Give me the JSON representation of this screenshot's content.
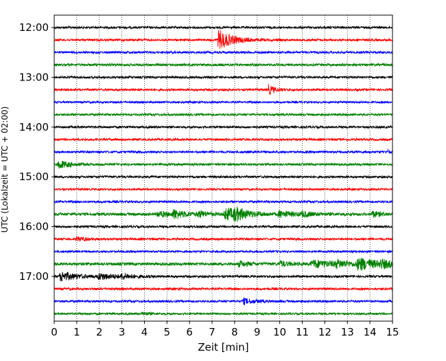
{
  "chart_data": {
    "type": "line",
    "subtype": "helicorder seismogram",
    "title": "",
    "xlabel": "Zeit  [min]",
    "ylabel": "UTC (Lokalzeit = UTC + 02:00)",
    "xlim": [
      0,
      15
    ],
    "x_ticks": [
      0,
      1,
      2,
      3,
      4,
      5,
      6,
      7,
      8,
      9,
      10,
      11,
      12,
      13,
      14,
      15
    ],
    "x_tick_labels": [
      "0",
      "1",
      "2",
      "3",
      "4",
      "5",
      "6",
      "7",
      "8",
      "9",
      "10",
      "11",
      "12",
      "13",
      "14",
      "15"
    ],
    "y_tick_labels": [
      "12:00",
      "13:00",
      "14:00",
      "15:00",
      "16:00",
      "17:00"
    ],
    "y_tick_rows": [
      0,
      4,
      8,
      12,
      16,
      20
    ],
    "vertical_grid": "dotted at each minute",
    "trace_minutes": 15,
    "row_colors": [
      "#000000",
      "#ff0000",
      "#0000ff",
      "#008000"
    ],
    "rows": [
      {
        "start": "12:00",
        "color": "black",
        "noise": 1.0,
        "events": []
      },
      {
        "start": "12:15",
        "color": "red",
        "noise": 1.0,
        "events": [
          {
            "t": 7.3,
            "amp": 14,
            "dur": 0.6
          }
        ]
      },
      {
        "start": "12:30",
        "color": "blue",
        "noise": 1.0,
        "events": []
      },
      {
        "start": "12:45",
        "color": "green",
        "noise": 1.1,
        "events": []
      },
      {
        "start": "13:00",
        "color": "black",
        "noise": 1.0,
        "events": []
      },
      {
        "start": "13:15",
        "color": "red",
        "noise": 1.0,
        "events": [
          {
            "t": 9.5,
            "amp": 7,
            "dur": 0.25
          }
        ]
      },
      {
        "start": "13:30",
        "color": "blue",
        "noise": 0.9,
        "events": []
      },
      {
        "start": "13:45",
        "color": "green",
        "noise": 1.0,
        "events": []
      },
      {
        "start": "14:00",
        "color": "black",
        "noise": 1.0,
        "events": []
      },
      {
        "start": "14:15",
        "color": "red",
        "noise": 1.0,
        "events": []
      },
      {
        "start": "14:30",
        "color": "blue",
        "noise": 1.0,
        "events": [
          {
            "t": 14.8,
            "amp": 3,
            "dur": 0.1
          }
        ]
      },
      {
        "start": "14:45",
        "color": "green",
        "noise": 1.0,
        "events": [
          {
            "t": 0.2,
            "amp": 6,
            "dur": 0.5
          }
        ]
      },
      {
        "start": "15:00",
        "color": "black",
        "noise": 1.0,
        "events": []
      },
      {
        "start": "15:15",
        "color": "red",
        "noise": 0.9,
        "events": []
      },
      {
        "start": "15:30",
        "color": "blue",
        "noise": 1.0,
        "events": []
      },
      {
        "start": "15:45",
        "color": "green",
        "noise": 1.3,
        "events": [
          {
            "t": 4.6,
            "amp": 4,
            "dur": 0.5
          },
          {
            "t": 5.3,
            "amp": 6,
            "dur": 0.5
          },
          {
            "t": 6.4,
            "amp": 4,
            "dur": 0.4
          },
          {
            "t": 7.6,
            "amp": 9,
            "dur": 0.7
          },
          {
            "t": 8.0,
            "amp": 6,
            "dur": 0.5
          },
          {
            "t": 10.0,
            "amp": 4,
            "dur": 0.7
          },
          {
            "t": 11.0,
            "amp": 3,
            "dur": 0.4
          },
          {
            "t": 14.1,
            "amp": 4,
            "dur": 0.4
          }
        ]
      },
      {
        "start": "16:00",
        "color": "black",
        "noise": 1.0,
        "events": []
      },
      {
        "start": "16:15",
        "color": "red",
        "noise": 1.0,
        "events": [
          {
            "t": 1.0,
            "amp": 3,
            "dur": 0.4
          }
        ]
      },
      {
        "start": "16:30",
        "color": "blue",
        "noise": 0.9,
        "events": []
      },
      {
        "start": "16:45",
        "color": "green",
        "noise": 1.3,
        "events": [
          {
            "t": 8.2,
            "amp": 4,
            "dur": 0.4
          },
          {
            "t": 10.0,
            "amp": 4,
            "dur": 0.4
          },
          {
            "t": 11.5,
            "amp": 5,
            "dur": 1.2
          },
          {
            "t": 12.5,
            "amp": 4,
            "dur": 0.5
          },
          {
            "t": 13.5,
            "amp": 8,
            "dur": 0.8
          },
          {
            "t": 14.5,
            "amp": 4,
            "dur": 0.6
          }
        ]
      },
      {
        "start": "17:00",
        "color": "black",
        "noise": 1.0,
        "events": [
          {
            "t": 0.3,
            "amp": 7,
            "dur": 0.7
          },
          {
            "t": 2.0,
            "amp": 4,
            "dur": 0.8
          },
          {
            "t": 3.0,
            "amp": 3,
            "dur": 0.5
          }
        ]
      },
      {
        "start": "17:15",
        "color": "red",
        "noise": 1.0,
        "events": []
      },
      {
        "start": "17:30",
        "color": "blue",
        "noise": 1.0,
        "events": [
          {
            "t": 8.4,
            "amp": 4,
            "dur": 0.5
          }
        ]
      },
      {
        "start": "17:45",
        "color": "green",
        "noise": 0.9,
        "events": [
          {
            "t": 3.9,
            "amp": 2,
            "dur": 0.4
          }
        ]
      }
    ]
  }
}
